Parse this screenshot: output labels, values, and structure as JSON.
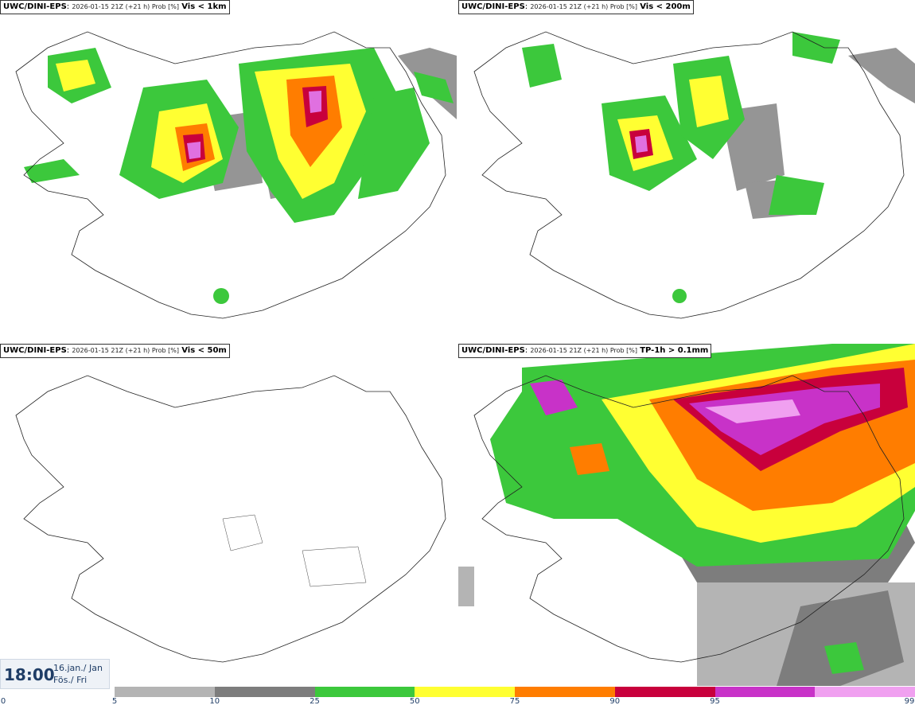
{
  "panels": [
    {
      "model": "UWC/DINI-EPS",
      "meta": "2026-01-15 21Z (+21 h) Prob [%]",
      "threshold": "Vis < 1km"
    },
    {
      "model": "UWC/DINI-EPS",
      "meta": "2026-01-15 21Z (+21 h) Prob [%]",
      "threshold": "Vis < 200m"
    },
    {
      "model": "UWC/DINI-EPS",
      "meta": "2026-01-15 21Z (+21 h) Prob [%]",
      "threshold": "Vis < 50m"
    },
    {
      "model": "UWC/DINI-EPS",
      "meta": "2026-01-15 21Z (+21 h) Prob [%]",
      "threshold": "TP-1h > 0.1mm"
    }
  ],
  "valid_time": {
    "time": "18:00",
    "date_line1": "16.jan./ Jan",
    "date_line2": "Fös./ Fri"
  },
  "colorbar": {
    "ticks": [
      "0",
      "5",
      "10",
      "25",
      "50",
      "75",
      "90",
      "95",
      "99"
    ],
    "colors": [
      "#b4b4b4",
      "#7d7d7d",
      "#3cc83c",
      "#ffff32",
      "#ff7d00",
      "#c8003c",
      "#c832c8",
      "#f0a0f0"
    ]
  }
}
